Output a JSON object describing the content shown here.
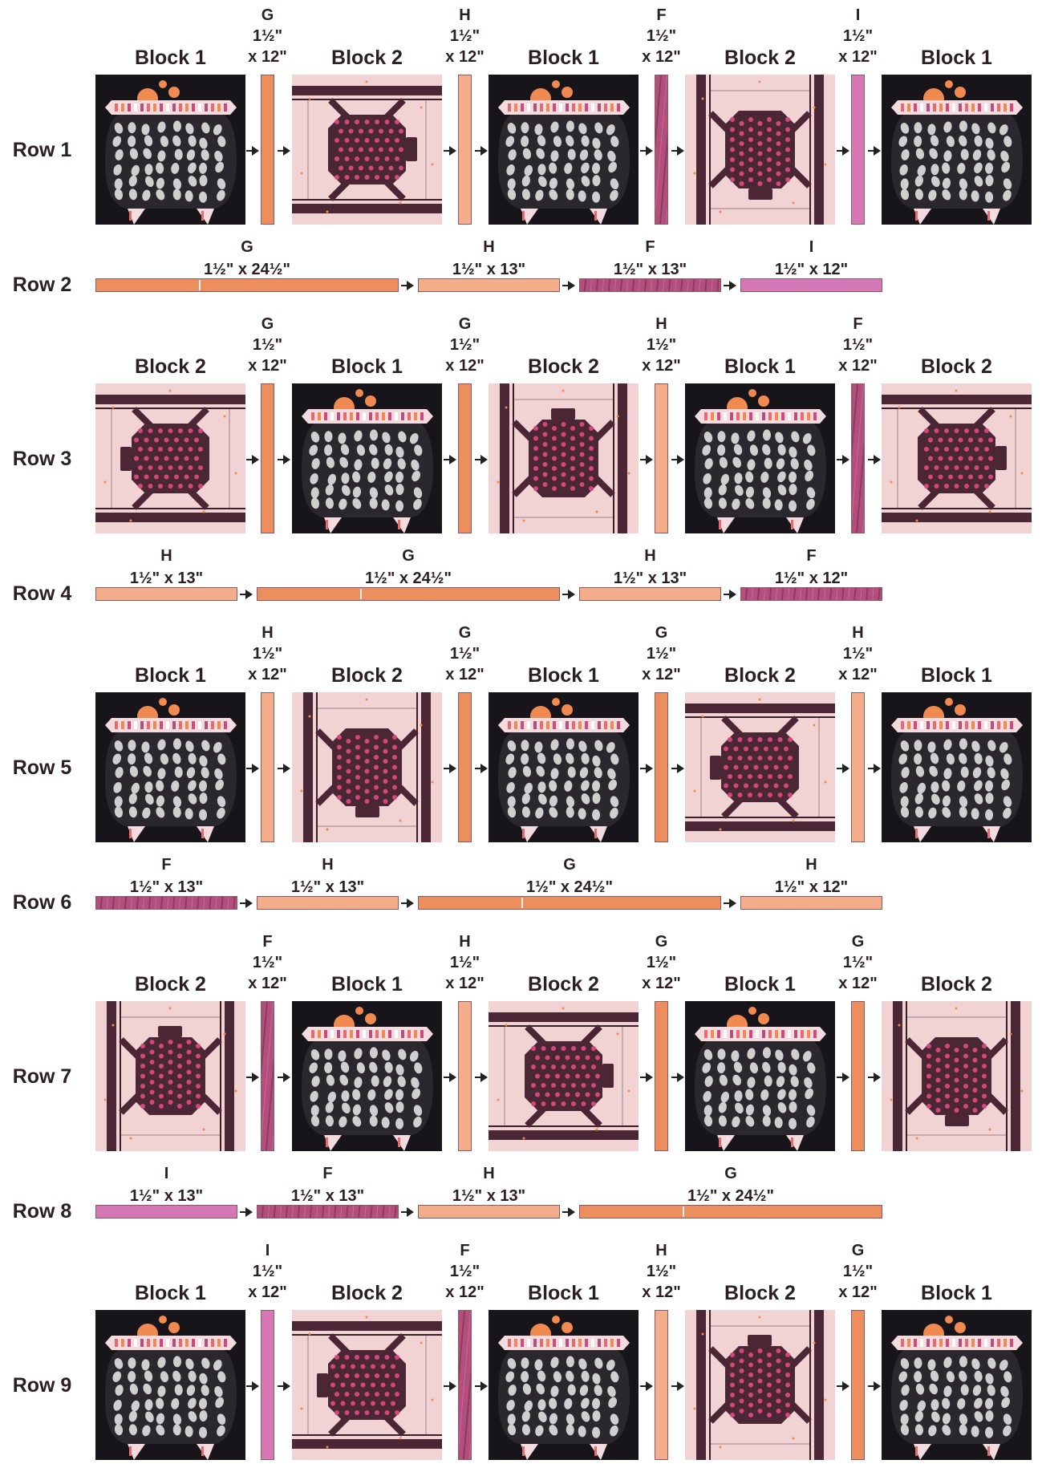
{
  "colors": {
    "G": "#ec8e5e",
    "H": "#f3ad8a",
    "F": "#b34f7d",
    "I": "#d478b6",
    "cauldron_bg": "#17151a",
    "spider_bg": "#f1d3d4",
    "spider_body": "#4b2735",
    "dot": "#d4477a",
    "ghost": "#cfcfcf",
    "orange_sun": "#f08a50"
  },
  "rows": [
    {
      "label": "Row 1",
      "type": "blocks",
      "blocks": [
        "Block 1",
        "Block 2",
        "Block 1",
        "Block 2",
        "Block 1"
      ],
      "sashings": [
        {
          "letter": "G",
          "dim1": "1½\"",
          "dim2": "x 12\""
        },
        {
          "letter": "H",
          "dim1": "1½\"",
          "dim2": "x 12\""
        },
        {
          "letter": "F",
          "dim1": "1½\"",
          "dim2": "x 12\""
        },
        {
          "letter": "I",
          "dim1": "1½\"",
          "dim2": "x 12\""
        }
      ]
    },
    {
      "label": "Row 2",
      "type": "strips",
      "strips": [
        {
          "letter": "G",
          "dim": "1½\" x 24½\"",
          "units": 2
        },
        {
          "letter": "H",
          "dim": "1½\" x 13\"",
          "units": 1
        },
        {
          "letter": "F",
          "dim": "1½\" x 13\"",
          "units": 1
        },
        {
          "letter": "I",
          "dim": "1½\" x 12\"",
          "units": 1
        }
      ]
    },
    {
      "label": "Row 3",
      "type": "blocks",
      "blocks": [
        "Block 2",
        "Block 1",
        "Block 2",
        "Block 1",
        "Block 2"
      ],
      "sashings": [
        {
          "letter": "G",
          "dim1": "1½\"",
          "dim2": "x 12\""
        },
        {
          "letter": "G",
          "dim1": "1½\"",
          "dim2": "x 12\""
        },
        {
          "letter": "H",
          "dim1": "1½\"",
          "dim2": "x 12\""
        },
        {
          "letter": "F",
          "dim1": "1½\"",
          "dim2": "x 12\""
        }
      ]
    },
    {
      "label": "Row 4",
      "type": "strips",
      "strips": [
        {
          "letter": "H",
          "dim": "1½\" x 13\"",
          "units": 1
        },
        {
          "letter": "G",
          "dim": "1½\" x 24½\"",
          "units": 2
        },
        {
          "letter": "H",
          "dim": "1½\" x 13\"",
          "units": 1
        },
        {
          "letter": "F",
          "dim": "1½\" x 12\"",
          "units": 1
        }
      ]
    },
    {
      "label": "Row 5",
      "type": "blocks",
      "blocks": [
        "Block 1",
        "Block 2",
        "Block 1",
        "Block 2",
        "Block 1"
      ],
      "sashings": [
        {
          "letter": "H",
          "dim1": "1½\"",
          "dim2": "x 12\""
        },
        {
          "letter": "G",
          "dim1": "1½\"",
          "dim2": "x 12\""
        },
        {
          "letter": "G",
          "dim1": "1½\"",
          "dim2": "x 12\""
        },
        {
          "letter": "H",
          "dim1": "1½\"",
          "dim2": "x 12\""
        }
      ]
    },
    {
      "label": "Row 6",
      "type": "strips",
      "strips": [
        {
          "letter": "F",
          "dim": "1½\" x 13\"",
          "units": 1
        },
        {
          "letter": "H",
          "dim": "1½\" x 13\"",
          "units": 1
        },
        {
          "letter": "G",
          "dim": "1½\" x 24½\"",
          "units": 2
        },
        {
          "letter": "H",
          "dim": "1½\" x 12\"",
          "units": 1
        }
      ]
    },
    {
      "label": "Row 7",
      "type": "blocks",
      "blocks": [
        "Block 2",
        "Block 1",
        "Block 2",
        "Block 1",
        "Block 2"
      ],
      "sashings": [
        {
          "letter": "F",
          "dim1": "1½\"",
          "dim2": "x 12\""
        },
        {
          "letter": "H",
          "dim1": "1½\"",
          "dim2": "x 12\""
        },
        {
          "letter": "G",
          "dim1": "1½\"",
          "dim2": "x 12\""
        },
        {
          "letter": "G",
          "dim1": "1½\"",
          "dim2": "x 12\""
        }
      ]
    },
    {
      "label": "Row 8",
      "type": "strips",
      "strips": [
        {
          "letter": "I",
          "dim": "1½\" x 13\"",
          "units": 1
        },
        {
          "letter": "F",
          "dim": "1½\" x 13\"",
          "units": 1
        },
        {
          "letter": "H",
          "dim": "1½\" x 13\"",
          "units": 1
        },
        {
          "letter": "G",
          "dim": "1½\" x 24½\"",
          "units": 2
        }
      ]
    },
    {
      "label": "Row 9",
      "type": "blocks",
      "blocks": [
        "Block 1",
        "Block 2",
        "Block 1",
        "Block 2",
        "Block 1"
      ],
      "sashings": [
        {
          "letter": "I",
          "dim1": "1½\"",
          "dim2": "x 12\""
        },
        {
          "letter": "F",
          "dim1": "1½\"",
          "dim2": "x 12\""
        },
        {
          "letter": "H",
          "dim1": "1½\"",
          "dim2": "x 12\""
        },
        {
          "letter": "G",
          "dim1": "1½\"",
          "dim2": "x 12\""
        }
      ]
    }
  ]
}
